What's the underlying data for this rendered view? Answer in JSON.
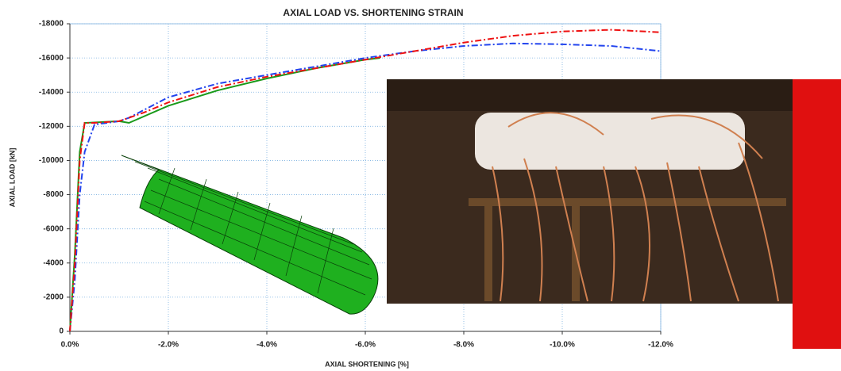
{
  "chart_data": {
    "type": "line",
    "title": "AXIAL LOAD VS. SHORTENING STRAIN",
    "x_label": "AXIAL SHORTENING [%]",
    "y_label": "AXIAL LOAD [kN]",
    "xlim": [
      0,
      -12
    ],
    "ylim": [
      0,
      -18000
    ],
    "xticks": [
      {
        "value": 0,
        "label": "0.0%"
      },
      {
        "value": -2,
        "label": "-2.0%"
      },
      {
        "value": -4,
        "label": "-4.0%"
      },
      {
        "value": -6,
        "label": "-6.0%"
      },
      {
        "value": -8,
        "label": "-8.0%"
      },
      {
        "value": -10,
        "label": "-10.0%"
      },
      {
        "value": -12,
        "label": "-12.0%"
      }
    ],
    "yticks": [
      0,
      -2000,
      -4000,
      -6000,
      -8000,
      -10000,
      -12000,
      -14000,
      -16000,
      -18000
    ],
    "grid": true,
    "series": [
      {
        "color": "#1a9a1a",
        "dash": "solid",
        "x": [
          0,
          -0.1,
          -0.2,
          -0.3,
          -1,
          -1.2,
          -2,
          -3,
          -4,
          -5,
          -6,
          -6.3
        ],
        "values": [
          0,
          -4500,
          -10500,
          -12200,
          -12300,
          -12200,
          -13200,
          -14100,
          -14800,
          -15400,
          -15900,
          -16000
        ]
      },
      {
        "color": "#2244ee",
        "dash": "dashdot",
        "x": [
          0,
          -0.1,
          -0.2,
          -0.3,
          -0.5,
          -1,
          -1.2,
          -2,
          -3,
          -4,
          -5,
          -6,
          -7,
          -8,
          -9,
          -10,
          -11,
          -12
        ],
        "values": [
          0,
          -3000,
          -8000,
          -10500,
          -12100,
          -12300,
          -12500,
          -13700,
          -14500,
          -15000,
          -15500,
          -16000,
          -16400,
          -16700,
          -16850,
          -16800,
          -16700,
          -16400
        ]
      },
      {
        "color": "#ee1111",
        "dash": "dashdot",
        "x": [
          0,
          -0.1,
          -0.2,
          -0.3,
          -0.5,
          -1,
          -1.5,
          -2,
          -3,
          -4,
          -5,
          -6,
          -7,
          -8,
          -9,
          -10,
          -11,
          -12
        ],
        "values": [
          0,
          -4000,
          -10000,
          -12200,
          -12200,
          -12300,
          -12800,
          -13400,
          -14300,
          -14900,
          -15400,
          -15900,
          -16400,
          -16900,
          -17300,
          -17550,
          -17650,
          -17500
        ]
      }
    ]
  }
}
